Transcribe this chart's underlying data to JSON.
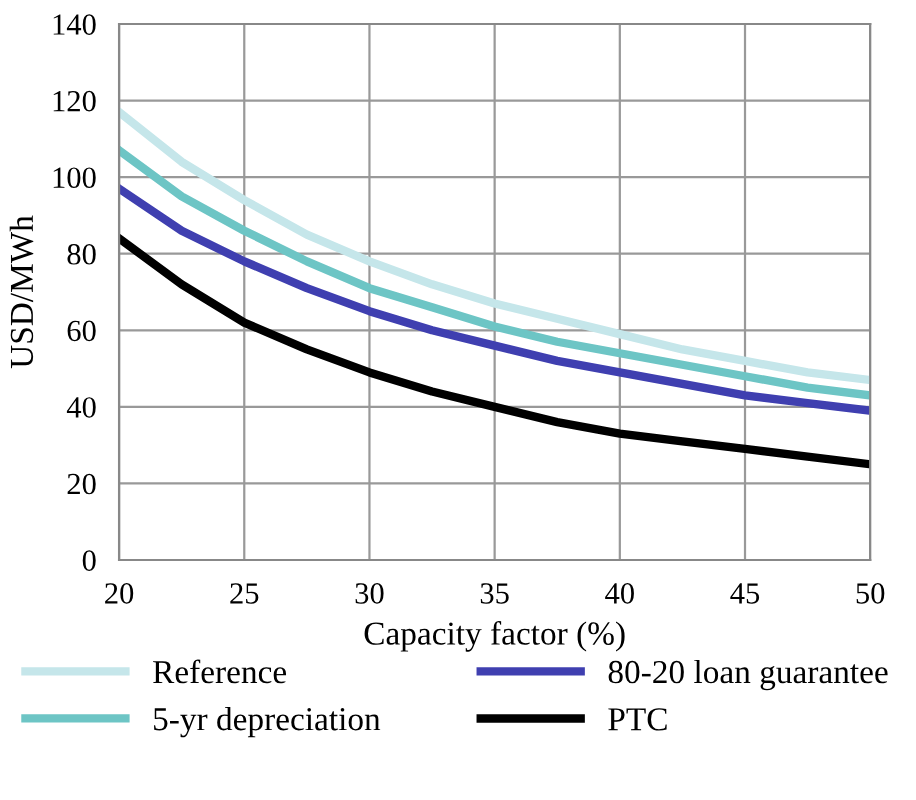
{
  "chart_data": {
    "type": "line",
    "xlabel": "Capacity factor (%)",
    "ylabel": "USD/MWh",
    "x": [
      20,
      22.5,
      25,
      27.5,
      30,
      32.5,
      35,
      37.5,
      40,
      42.5,
      45,
      47.5,
      50
    ],
    "series": [
      {
        "name": "Reference",
        "color": "#c5e6ea",
        "values": [
          117,
          104,
          94,
          85,
          78,
          72,
          67,
          63,
          59,
          55,
          52,
          49,
          47
        ]
      },
      {
        "name": "5-yr depreciation",
        "color": "#6dc5c5",
        "values": [
          107,
          95,
          86,
          78,
          71,
          66,
          61,
          57,
          54,
          51,
          48,
          45,
          43
        ]
      },
      {
        "name": "80-20 loan guarantee",
        "color": "#3f3fb0",
        "values": [
          97,
          86,
          78,
          71,
          65,
          60,
          56,
          52,
          49,
          46,
          43,
          41,
          39
        ]
      },
      {
        "name": "PTC",
        "color": "#000000",
        "values": [
          84,
          72,
          62,
          55,
          49,
          44,
          40,
          36,
          33,
          31,
          29,
          27,
          25
        ]
      }
    ],
    "xlim": [
      20,
      50
    ],
    "xticks": [
      20,
      25,
      30,
      35,
      40,
      45,
      50
    ],
    "ylim": [
      0,
      140
    ],
    "yticks": [
      0,
      20,
      40,
      60,
      80,
      100,
      120,
      140
    ],
    "grid": true,
    "legend": "bottom",
    "marker": "none",
    "line_style": "solid"
  }
}
